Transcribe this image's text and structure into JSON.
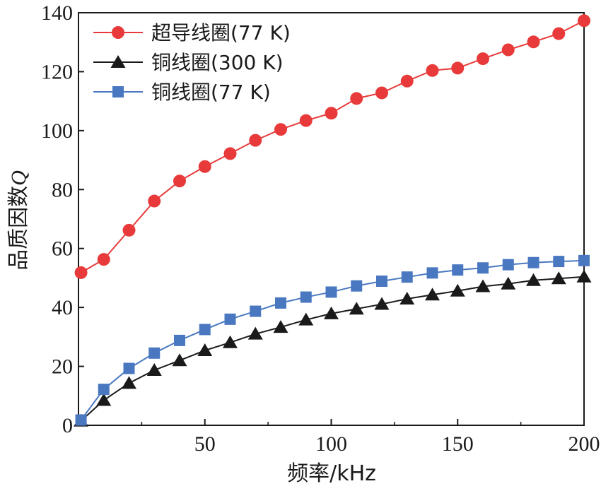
{
  "chart_data": {
    "type": "line",
    "xlabel": "频率/kHz",
    "ylabel_text": "品质因数",
    "ylabel_symbol": "Q",
    "xlim": [
      0,
      200
    ],
    "ylim": [
      0,
      140
    ],
    "xticks": [
      50,
      100,
      150,
      200
    ],
    "yticks": [
      0,
      20,
      40,
      60,
      80,
      100,
      120,
      140
    ],
    "grid": false,
    "legend_position": "top-left",
    "x": [
      1,
      10,
      20,
      30,
      40,
      50,
      60,
      70,
      80,
      90,
      100,
      110,
      120,
      130,
      140,
      150,
      160,
      170,
      180,
      190,
      200
    ],
    "series": [
      {
        "name": "超导线圈(77 K)",
        "marker": "circle",
        "color": "#e83a3a",
        "values": [
          51.8,
          56.3,
          66.2,
          76.1,
          82.9,
          87.8,
          92.2,
          96.7,
          100.4,
          103.4,
          105.9,
          110.9,
          112.8,
          116.8,
          120.4,
          121.2,
          124.4,
          127.4,
          130.1,
          132.9,
          137.3
        ]
      },
      {
        "name": "铜线圈(300 K)",
        "marker": "triangle",
        "color": "#1a1a1a",
        "values": [
          1.5,
          8.5,
          14.3,
          18.7,
          22.0,
          25.4,
          28.1,
          31.0,
          33.3,
          35.8,
          37.9,
          39.5,
          41.1,
          42.9,
          44.3,
          45.6,
          47.1,
          48.0,
          49.2,
          49.8,
          50.4
        ]
      },
      {
        "name": "铜线圈(77 K)",
        "marker": "square",
        "color": "#4a78c0",
        "values": [
          1.8,
          12.2,
          19.3,
          24.5,
          28.8,
          32.5,
          36.0,
          38.7,
          41.5,
          43.5,
          45.2,
          47.3,
          48.9,
          50.3,
          51.7,
          52.7,
          53.4,
          54.5,
          55.2,
          55.6,
          55.9
        ]
      }
    ]
  }
}
